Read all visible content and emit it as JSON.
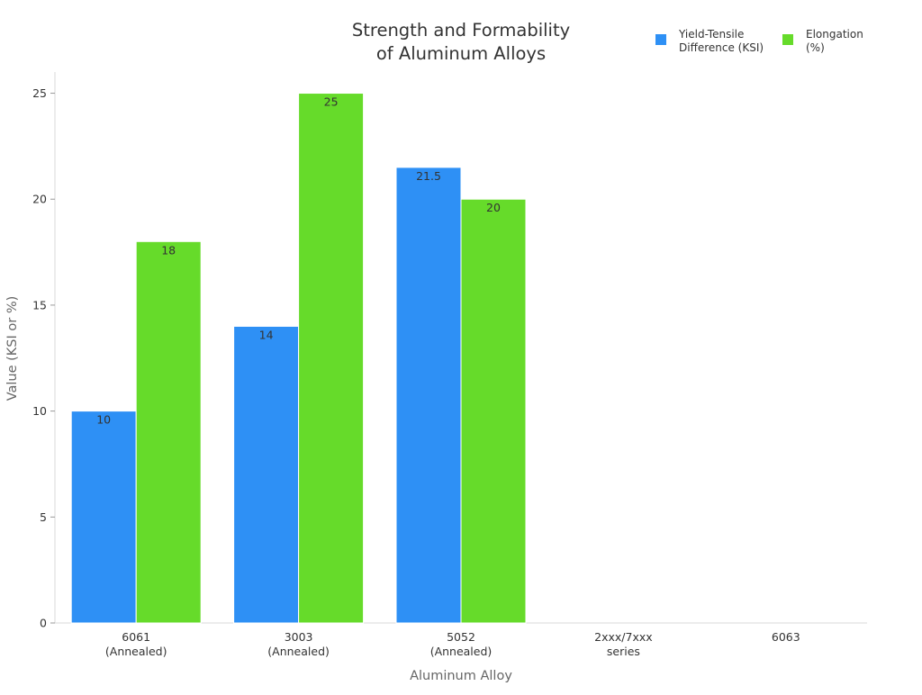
{
  "chart_data": {
    "type": "bar",
    "title": [
      "Strength and Formability",
      "of Aluminum Alloys"
    ],
    "xlabel": "Aluminum Alloy",
    "ylabel": "Value (KSI or %)",
    "ylim": [
      0,
      26
    ],
    "yticks": [
      0,
      5,
      10,
      15,
      20,
      25
    ],
    "categories": [
      [
        "6061",
        "(Annealed)"
      ],
      [
        "3003",
        "(Annealed)"
      ],
      [
        "5052",
        "(Annealed)"
      ],
      [
        "2xxx/7xxx",
        "series"
      ],
      [
        "6063"
      ]
    ],
    "series": [
      {
        "name": [
          "Yield-Tensile",
          "Difference (KSI)"
        ],
        "color": "#2e90f5",
        "values": [
          10,
          14,
          21.5,
          null,
          null
        ]
      },
      {
        "name": [
          "Elongation",
          "(%)"
        ],
        "color": "#66db2a",
        "values": [
          18,
          25,
          20,
          null,
          null
        ]
      }
    ],
    "grid": false,
    "legend_position": "top-right",
    "data_labels": true
  }
}
